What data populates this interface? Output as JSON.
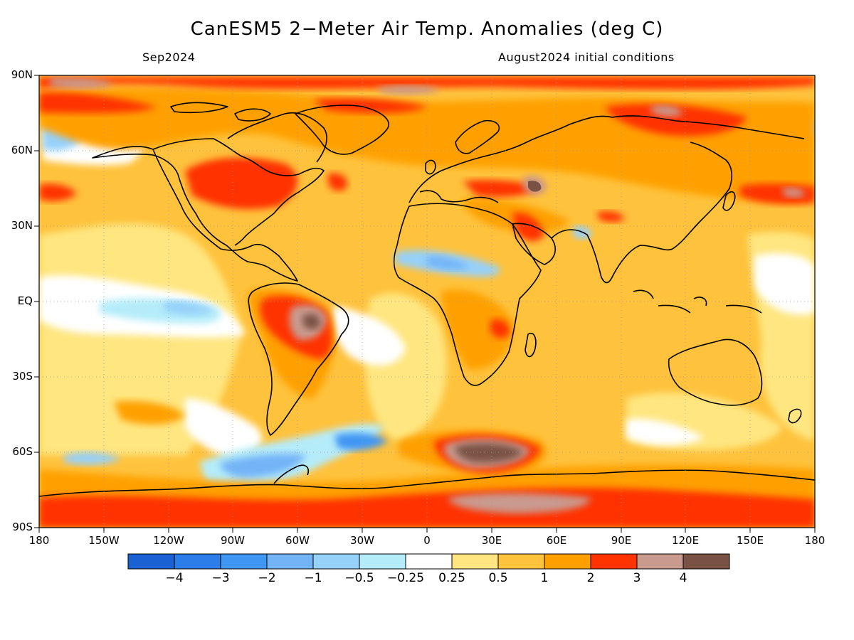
{
  "title": "CanESM5 2−Meter Air Temp. Anomalies (deg C)",
  "valid_month": "Sep2024",
  "init_note": "August2024 initial conditions",
  "lat_labels": [
    "90N",
    "60N",
    "30N",
    "EQ",
    "30S",
    "60S",
    "90S"
  ],
  "lon_labels": [
    "180",
    "150W",
    "120W",
    "90W",
    "60W",
    "30W",
    "0",
    "30E",
    "60E",
    "90E",
    "120E",
    "150E",
    "180"
  ],
  "colorbar": {
    "colors": [
      "#1a62d4",
      "#2b7de9",
      "#3f96f3",
      "#73b4f7",
      "#96d1fa",
      "#b5ecfa",
      "#ffffff",
      "#ffe680",
      "#ffc23c",
      "#ffa000",
      "#ff3300",
      "#c99a8e",
      "#7a5245"
    ],
    "labels": [
      "−4",
      "−3",
      "−2",
      "−1",
      "−0.5",
      "−0.25",
      "0.25",
      "0.5",
      "1",
      "2",
      "3",
      "4"
    ]
  }
}
